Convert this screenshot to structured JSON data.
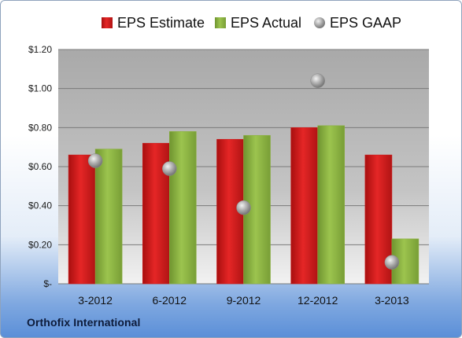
{
  "company": "Orthofix International",
  "colors": {
    "estimate": "#cc1a1a",
    "actual": "#8bb040",
    "gaap": "#a6a6a6",
    "plot_background": "#bdbdbd"
  },
  "chart_data": {
    "type": "bar",
    "categories": [
      "3-2012",
      "6-2012",
      "9-2012",
      "12-2012",
      "3-2013"
    ],
    "series": [
      {
        "name": "EPS Estimate",
        "type": "bar",
        "values": [
          0.66,
          0.72,
          0.74,
          0.8,
          0.66
        ]
      },
      {
        "name": "EPS Actual",
        "type": "bar",
        "values": [
          0.69,
          0.78,
          0.76,
          0.81,
          0.23
        ]
      },
      {
        "name": "EPS GAAP",
        "type": "scatter",
        "values": [
          0.63,
          0.59,
          0.39,
          1.04,
          0.11
        ]
      }
    ],
    "yticks": [
      "$-",
      "$0.20",
      "$0.40",
      "$0.60",
      "$0.80",
      "$1.00",
      "$1.20"
    ],
    "ylim": [
      0,
      1.2
    ],
    "grid": true,
    "legend": "top"
  }
}
